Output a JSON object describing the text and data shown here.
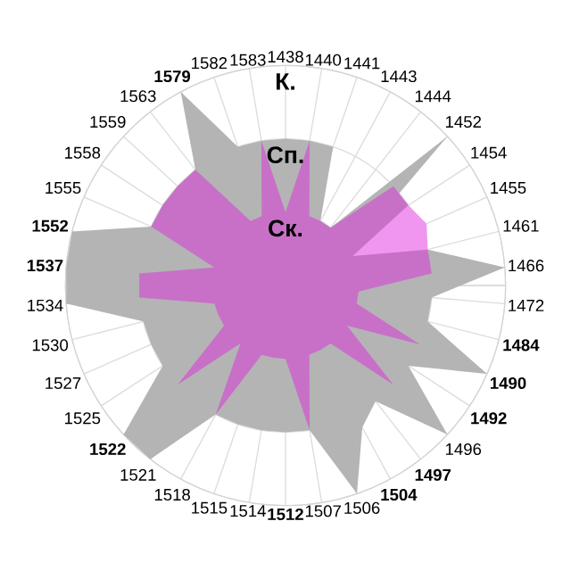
{
  "chart_data": {
    "type": "radar",
    "categories": [
      "1438",
      "1440",
      "1441",
      "1443",
      "1444",
      "1452",
      "1454",
      "1455",
      "1461",
      "1466",
      "1472",
      "**1484**",
      "**1490**",
      "**1492**",
      "1496",
      "**1497**",
      "**1504**",
      "1506",
      "1507",
      "**1512**",
      "1514",
      "1515",
      "1518",
      "1521",
      "**1522**",
      "1525",
      "1527",
      "1530",
      "1534",
      "**1537**",
      "**1552**",
      "1555",
      "1558",
      "1559",
      "1563",
      "**1579**",
      "1582",
      "1583"
    ],
    "series": [
      {
        "color": "#b4b4b4",
        "values": [
          2,
          2,
          2,
          1,
          1,
          3,
          1.3,
          1.5,
          2,
          3,
          2,
          2,
          3,
          2,
          3,
          2,
          2.2,
          3,
          2,
          2,
          2,
          2,
          2,
          3,
          3,
          2,
          2,
          2,
          3,
          3,
          3,
          2,
          2,
          2,
          2,
          3,
          2,
          2
        ]
      },
      {
        "color": "#f096f0",
        "values": [
          null,
          null,
          null,
          null,
          null,
          null,
          2,
          2.1,
          2,
          null,
          null,
          null,
          null,
          null,
          null,
          null,
          null,
          null,
          null,
          null,
          null,
          null,
          null,
          null,
          null,
          null,
          null,
          null,
          null,
          null,
          null,
          null,
          null,
          null,
          null,
          null,
          null,
          null
        ]
      },
      {
        "color": "#c870c8",
        "values": [
          1,
          2,
          1,
          1,
          1,
          2,
          2,
          1,
          2,
          2,
          1,
          1,
          2,
          1,
          2,
          1,
          1,
          1,
          2,
          1,
          1,
          1,
          2,
          1,
          2,
          1,
          1,
          1,
          2,
          2,
          1,
          2,
          2,
          2,
          2,
          1,
          1,
          2
        ]
      }
    ],
    "ylim": [
      0,
      3
    ],
    "yticks": [
      {
        "value": 1,
        "label": "Ск."
      },
      {
        "value": 2,
        "label": "Сп."
      },
      {
        "value": 3,
        "label": "К."
      }
    ],
    "grid": true
  }
}
